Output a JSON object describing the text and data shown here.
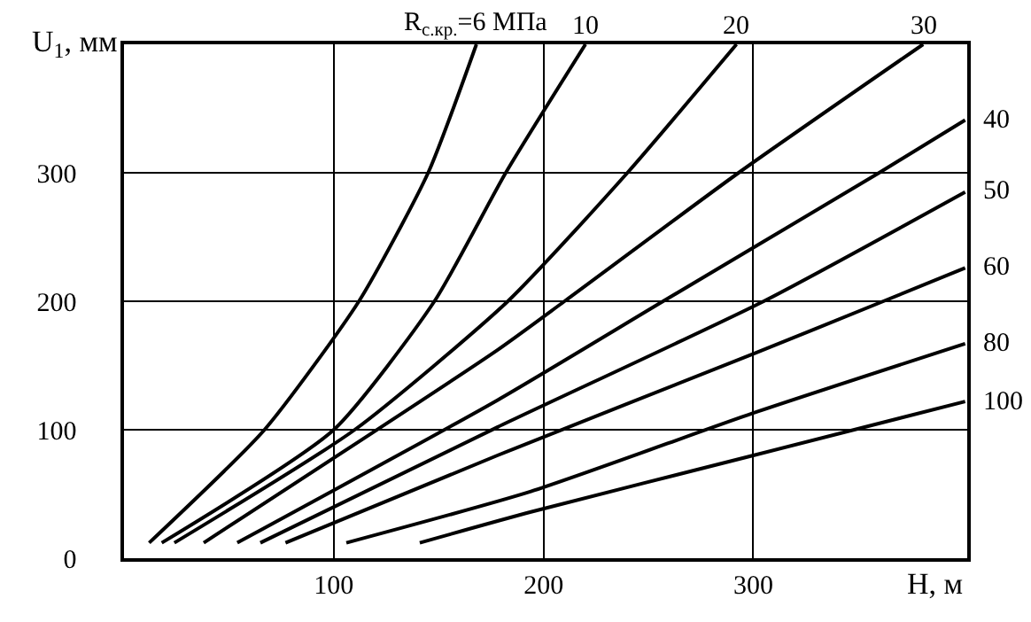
{
  "chart_data": {
    "type": "line",
    "xlabel": "H, м",
    "ylabel": "U$_{1}$, мм",
    "xlim": [
      0,
      402
    ],
    "ylim": [
      0,
      400
    ],
    "xticks": [
      100,
      200,
      300
    ],
    "yticks": [
      0,
      100,
      200,
      300
    ],
    "grid": true,
    "legend": false,
    "marker": "none",
    "line_style": "solid",
    "series": [
      {
        "name": "R$_{с.кр.}$=6 МПа",
        "color": "#000000",
        "x": [
          12,
          67,
          112,
          145,
          168
        ],
        "values": [
          12,
          100,
          200,
          300,
          400
        ]
      },
      {
        "name": "10",
        "color": "#000000",
        "x": [
          18,
          100,
          148,
          182,
          220
        ],
        "values": [
          12,
          100,
          200,
          300,
          400
        ]
      },
      {
        "name": "20",
        "color": "#000000",
        "x": [
          24,
          110,
          183,
          240,
          292
        ],
        "values": [
          12,
          100,
          200,
          300,
          400
        ]
      },
      {
        "name": "30",
        "color": "#000000",
        "x": [
          38,
          178,
          210,
          293,
          381
        ],
        "values": [
          12,
          162,
          200,
          300,
          400
        ]
      },
      {
        "name": "40",
        "color": "#000000",
        "x": [
          54,
          178,
          257,
          360,
          401
        ],
        "values": [
          12,
          123,
          200,
          300,
          341
        ]
      },
      {
        "name": "50",
        "color": "#000000",
        "x": [
          65,
          178,
          305,
          401
        ],
        "values": [
          12,
          102,
          200,
          285
        ]
      },
      {
        "name": "60",
        "color": "#000000",
        "x": [
          77,
          178,
          300,
          362,
          401
        ],
        "values": [
          12,
          80,
          159,
          200,
          226
        ]
      },
      {
        "name": "80",
        "color": "#000000",
        "x": [
          106,
          194,
          300,
          401
        ],
        "values": [
          12,
          52,
          113,
          167
        ]
      },
      {
        "name": "100",
        "color": "#000000",
        "x": [
          141,
          194,
          300,
          401
        ],
        "values": [
          12,
          36,
          80,
          122
        ]
      }
    ]
  }
}
